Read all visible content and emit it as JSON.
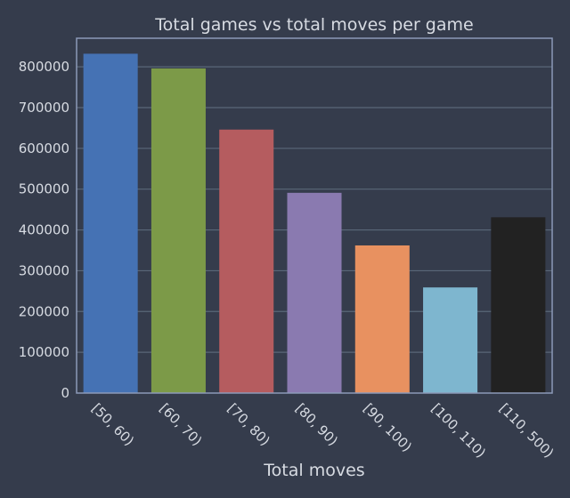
{
  "chart_data": {
    "type": "bar",
    "title": "Total games vs total moves per game",
    "xlabel": "Total moves",
    "ylabel": "",
    "categories": [
      "[50, 60)",
      "[60, 70)",
      "[70, 80)",
      "[80, 90)",
      "[90, 100)",
      "[100, 110)",
      "[110, 500)"
    ],
    "values": [
      832000,
      796000,
      646000,
      491000,
      362000,
      259000,
      431000
    ],
    "ylim": [
      0,
      870000
    ],
    "yticks": [
      0,
      100000,
      200000,
      300000,
      400000,
      500000,
      600000,
      700000,
      800000
    ],
    "ytick_labels": [
      "0",
      "100000",
      "200000",
      "300000",
      "400000",
      "500000",
      "600000",
      "700000",
      "800000"
    ],
    "colors": [
      "#4572b4",
      "#7c9a48",
      "#b55c5f",
      "#8a7ab0",
      "#e89160",
      "#7eb6cf",
      "#222222"
    ],
    "grid": true,
    "legend": "none",
    "background": "#353c4c",
    "frame_color": "#8c9ab8",
    "grid_color": "#5a6778"
  }
}
